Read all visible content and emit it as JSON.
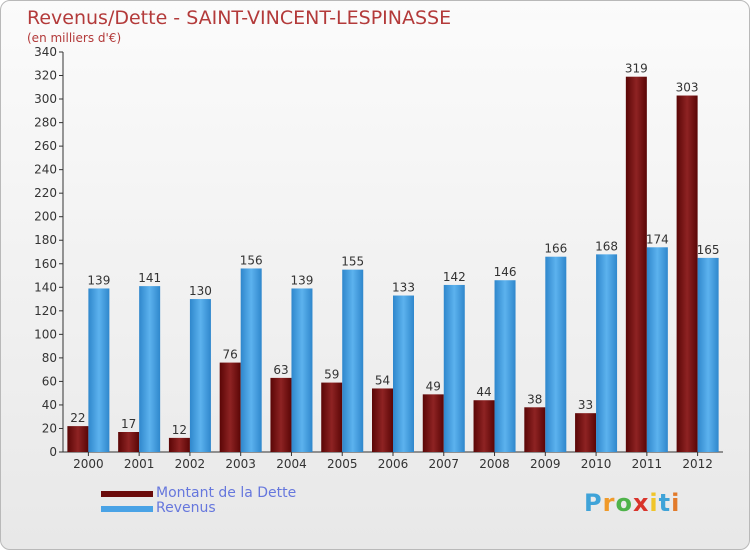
{
  "header": {
    "title": "Revenus/Dette - SAINT-VINCENT-LESPINASSE",
    "subtitle": "(en milliers d'€)"
  },
  "legend": {
    "items": [
      {
        "label": "Montant de la Dette",
        "color": "#6b0b0b"
      },
      {
        "label": "Revenus",
        "color": "#4aa3e6"
      }
    ]
  },
  "logo": {
    "text": "Proxiti",
    "letters": [
      "P",
      "r",
      "o",
      "x",
      "i",
      "t",
      "i"
    ],
    "colors": [
      "#3fa3d8",
      "#f09a2a",
      "#4fb34a",
      "#d9342b",
      "#f0c52a",
      "#3fa3d8",
      "#e27a2a"
    ]
  },
  "chart_data": {
    "type": "bar",
    "categories": [
      "2000",
      "2001",
      "2002",
      "2003",
      "2004",
      "2005",
      "2006",
      "2007",
      "2008",
      "2009",
      "2010",
      "2011",
      "2012"
    ],
    "series": [
      {
        "name": "Montant de la Dette",
        "color": "#7a1414",
        "values": [
          22,
          17,
          12,
          76,
          63,
          59,
          54,
          49,
          44,
          38,
          33,
          319,
          303
        ]
      },
      {
        "name": "Revenus",
        "color": "#4aa3e6",
        "values": [
          139,
          141,
          130,
          156,
          139,
          155,
          133,
          142,
          146,
          166,
          168,
          174,
          165
        ]
      }
    ],
    "ylim": [
      0,
      340
    ],
    "yticks": [
      0,
      20,
      40,
      60,
      80,
      100,
      120,
      140,
      160,
      180,
      200,
      220,
      240,
      260,
      280,
      300,
      320,
      340
    ],
    "grid": false,
    "legend_position": "bottom-left"
  }
}
